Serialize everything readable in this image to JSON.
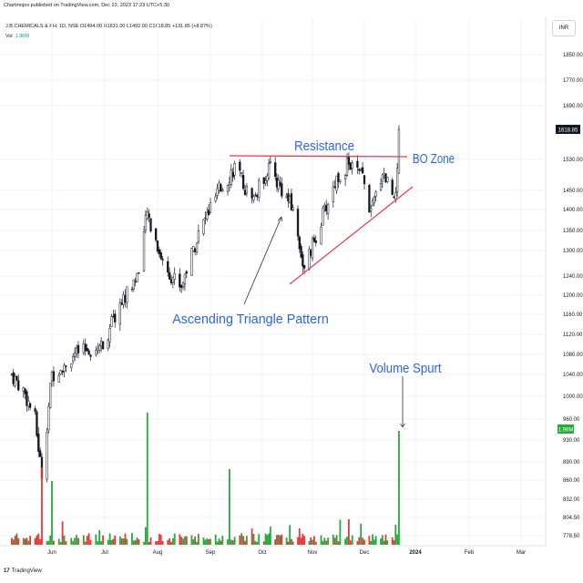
{
  "header": {
    "credit": "Chartmojos published on TradingView.com, Dec 22, 2023 17:23 UTC+5:30",
    "symbol_line": "J.B.CHEMICALS & PH, 1D, NSE  O1494.00  H1631.00  L1492.00  C1618.85  +131.85 (+8.87%)",
    "vol_label": "Vol",
    "vol_value": "1.96M",
    "currency": "INR"
  },
  "footer": {
    "logo": "17",
    "brand": "TradingView"
  },
  "colors": {
    "up": "#26a69a",
    "down": "#ef5350",
    "vol_up": "#22ab3a",
    "vol_down": "#e53935",
    "annotation_text": "#2962ff",
    "resistance": "#f23645",
    "support": "#f23645"
  },
  "chart_data": {
    "type": "candlestick",
    "title": "J.B.CHEMICALS & PH, 1D, NSE",
    "y_axis": {
      "scale": "log",
      "ticks": [
        "1850.00",
        "1770.00",
        "1690.00",
        "1618.85",
        "1530.00",
        "1450.00",
        "1400.00",
        "1350.00",
        "1300.00",
        "1240.00",
        "1200.00",
        "1160.00",
        "1120.00",
        "1080.00",
        "1040.00",
        "1000.00",
        "960.00",
        "930.00",
        "890.00",
        "860.00",
        "832.00",
        "804.50",
        "778.50"
      ],
      "last_price": "1618.85",
      "volume_label": "1.96M"
    },
    "x_axis": {
      "ticks": [
        "Jun",
        "Jul",
        "Aug",
        "Sep",
        "Oct",
        "Nov",
        "Dec",
        "2024",
        "Feb",
        "Mar"
      ]
    },
    "approx_close_path": [
      {
        "date": "2023-05-08",
        "close": 1040
      },
      {
        "date": "2023-05-15",
        "close": 1010
      },
      {
        "date": "2023-05-22",
        "close": 960
      },
      {
        "date": "2023-05-26",
        "close": 870
      },
      {
        "date": "2023-06-01",
        "close": 1040
      },
      {
        "date": "2023-06-15",
        "close": 1080
      },
      {
        "date": "2023-06-30",
        "close": 1100
      },
      {
        "date": "2023-07-10",
        "close": 1180
      },
      {
        "date": "2023-07-20",
        "close": 1240
      },
      {
        "date": "2023-07-26",
        "close": 1390
      },
      {
        "date": "2023-08-05",
        "close": 1260
      },
      {
        "date": "2023-08-15",
        "close": 1220
      },
      {
        "date": "2023-08-25",
        "close": 1340
      },
      {
        "date": "2023-09-05",
        "close": 1440
      },
      {
        "date": "2023-09-15",
        "close": 1510
      },
      {
        "date": "2023-09-25",
        "close": 1420
      },
      {
        "date": "2023-10-05",
        "close": 1510
      },
      {
        "date": "2023-10-12",
        "close": 1460
      },
      {
        "date": "2023-10-20",
        "close": 1400
      },
      {
        "date": "2023-10-27",
        "close": 1250
      },
      {
        "date": "2023-11-05",
        "close": 1360
      },
      {
        "date": "2023-11-15",
        "close": 1480
      },
      {
        "date": "2023-11-22",
        "close": 1520
      },
      {
        "date": "2023-11-30",
        "close": 1480
      },
      {
        "date": "2023-12-05",
        "close": 1390
      },
      {
        "date": "2023-12-12",
        "close": 1500
      },
      {
        "date": "2023-12-19",
        "close": 1440
      },
      {
        "date": "2023-12-21",
        "close": 1487
      },
      {
        "date": "2023-12-22",
        "close": 1618.85
      }
    ],
    "volume_spurt_value": "1.96M",
    "annotations": [
      {
        "text": "Resistance"
      },
      {
        "text": "BO Zone"
      },
      {
        "text": "Ascending Triangle Pattern"
      },
      {
        "text": "Volume Spurt"
      }
    ],
    "resistance_level": 1530,
    "support_line": {
      "from": {
        "date": "2023-10-28",
        "price": 1230
      },
      "to": {
        "date": "2023-12-23",
        "price": 1470
      }
    }
  }
}
